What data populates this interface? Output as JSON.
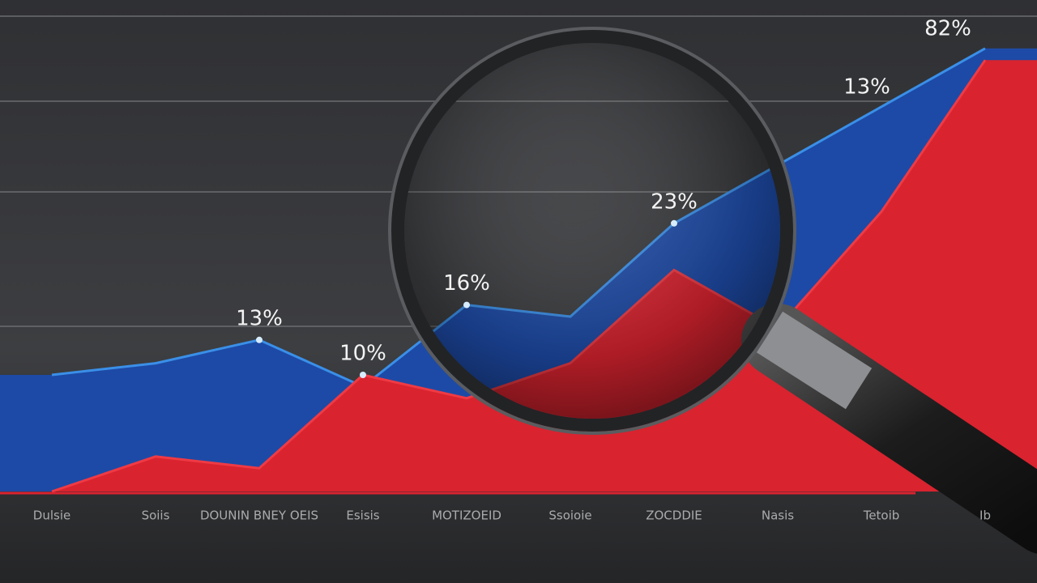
{
  "chart_data": {
    "type": "area",
    "categories": [
      "Dulsie",
      "Soiis",
      "DOUNIN BNEY OEIS",
      "Esisis",
      "MOTIZOEID",
      "Ssoioie",
      "ZOCDDIE",
      "Nasis",
      "Tetoib",
      "Ib"
    ],
    "series": [
      {
        "color": "#1d4aa6",
        "values": [
          10,
          11,
          13,
          9,
          16,
          15,
          23,
          28,
          33,
          38
        ],
        "value_labels": [
          null,
          null,
          "13%",
          null,
          "16%",
          null,
          "23%",
          null,
          null,
          null
        ]
      },
      {
        "color": "#d9232f",
        "values": [
          0,
          3,
          2,
          10,
          8,
          11,
          19,
          14,
          24,
          37
        ],
        "value_labels": [
          null,
          null,
          null,
          "10%",
          null,
          null,
          null,
          null,
          null,
          null
        ]
      }
    ],
    "annotations": [
      "13%",
      "82%"
    ],
    "ylim": [
      0,
      40
    ]
  }
}
